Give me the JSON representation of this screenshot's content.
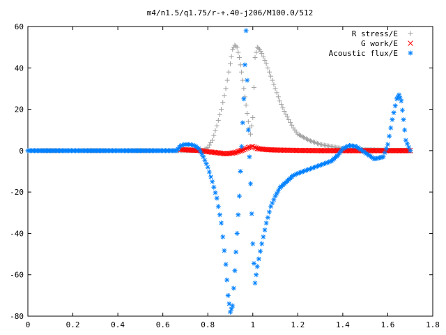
{
  "chart_data": {
    "type": "scatter",
    "title": "m4/n1.5/q1.75/r-+.40-j206/M100.0/512",
    "xlabel": "",
    "ylabel": "",
    "xlim": [
      0,
      1.8
    ],
    "ylim": [
      -80,
      60
    ],
    "xticks": [
      0,
      0.2,
      0.4,
      0.6,
      0.8,
      1,
      1.2,
      1.4,
      1.6,
      1.8
    ],
    "xtick_labels": [
      "0",
      "0.2",
      "0.4",
      "0.6",
      "0.8",
      "1",
      "1.2",
      "1.4",
      "1.6",
      "1.8"
    ],
    "yticks": [
      -80,
      -60,
      -40,
      -20,
      0,
      20,
      40,
      60
    ],
    "ytick_labels": [
      "-80",
      "-60",
      "-40",
      "-20",
      "0",
      "20",
      "40",
      "60"
    ],
    "grid": false,
    "legend_position": "top-right",
    "series": [
      {
        "name": "R stress/E",
        "marker": "plus",
        "color": "#a0a0a0",
        "points": [
          [
            0.0,
            0
          ],
          [
            0.2,
            0
          ],
          [
            0.4,
            0
          ],
          [
            0.6,
            0
          ],
          [
            0.7,
            0
          ],
          [
            0.78,
            0.2
          ],
          [
            0.8,
            1.5
          ],
          [
            0.82,
            5
          ],
          [
            0.84,
            12
          ],
          [
            0.86,
            20
          ],
          [
            0.88,
            30
          ],
          [
            0.9,
            42
          ],
          [
            0.91,
            49
          ],
          [
            0.92,
            51
          ],
          [
            0.93,
            50
          ],
          [
            0.94,
            45
          ],
          [
            0.95,
            38
          ],
          [
            0.96,
            30
          ],
          [
            0.97,
            22
          ],
          [
            0.98,
            14
          ],
          [
            0.99,
            8
          ],
          [
            1.0,
            16
          ],
          [
            1.01,
            45
          ],
          [
            1.02,
            50
          ],
          [
            1.03,
            49
          ],
          [
            1.04,
            47
          ],
          [
            1.06,
            42
          ],
          [
            1.08,
            36
          ],
          [
            1.1,
            30
          ],
          [
            1.12,
            24
          ],
          [
            1.14,
            19
          ],
          [
            1.16,
            15
          ],
          [
            1.18,
            11
          ],
          [
            1.2,
            8
          ],
          [
            1.25,
            5
          ],
          [
            1.3,
            3
          ],
          [
            1.35,
            2
          ],
          [
            1.4,
            1
          ],
          [
            1.5,
            0.5
          ],
          [
            1.6,
            0.2
          ],
          [
            1.7,
            0.1
          ]
        ]
      },
      {
        "name": "G work/E",
        "marker": "cross",
        "color": "#ff0000",
        "points": [
          [
            0.68,
            0.5
          ],
          [
            0.72,
            0.3
          ],
          [
            0.76,
            0.1
          ],
          [
            0.8,
            -0.5
          ],
          [
            0.84,
            -1
          ],
          [
            0.88,
            -1.5
          ],
          [
            0.92,
            -1
          ],
          [
            0.96,
            0.5
          ],
          [
            0.98,
            1.5
          ],
          [
            1.0,
            2
          ],
          [
            1.02,
            1
          ],
          [
            1.06,
            0.5
          ],
          [
            1.1,
            0.3
          ],
          [
            1.2,
            0.1
          ],
          [
            1.3,
            0
          ],
          [
            1.4,
            0
          ],
          [
            1.5,
            0
          ],
          [
            1.6,
            0
          ],
          [
            1.7,
            0
          ]
        ]
      },
      {
        "name": "Acoustic flux/E",
        "marker": "star",
        "color": "#0080ff",
        "points": [
          [
            0.0,
            0
          ],
          [
            0.1,
            0
          ],
          [
            0.2,
            0
          ],
          [
            0.3,
            0
          ],
          [
            0.4,
            0
          ],
          [
            0.5,
            0
          ],
          [
            0.6,
            0
          ],
          [
            0.66,
            0
          ],
          [
            0.68,
            2.5
          ],
          [
            0.7,
            3
          ],
          [
            0.72,
            3
          ],
          [
            0.74,
            2.5
          ],
          [
            0.76,
            1
          ],
          [
            0.78,
            -3
          ],
          [
            0.8,
            -8
          ],
          [
            0.82,
            -15
          ],
          [
            0.84,
            -23
          ],
          [
            0.86,
            -35
          ],
          [
            0.88,
            -55
          ],
          [
            0.89,
            -70
          ],
          [
            0.9,
            -78
          ],
          [
            0.91,
            -75
          ],
          [
            0.92,
            -58
          ],
          [
            0.93,
            -40
          ],
          [
            0.94,
            -22
          ],
          [
            0.95,
            2
          ],
          [
            0.96,
            25
          ],
          [
            0.97,
            58
          ],
          [
            0.98,
            10
          ],
          [
            0.99,
            -16
          ],
          [
            1.0,
            -45
          ],
          [
            1.01,
            -64
          ],
          [
            1.02,
            -56
          ],
          [
            1.04,
            -45
          ],
          [
            1.06,
            -35
          ],
          [
            1.08,
            -27
          ],
          [
            1.1,
            -22
          ],
          [
            1.12,
            -18
          ],
          [
            1.14,
            -16
          ],
          [
            1.16,
            -14
          ],
          [
            1.18,
            -12
          ],
          [
            1.2,
            -11
          ],
          [
            1.25,
            -9
          ],
          [
            1.3,
            -7
          ],
          [
            1.35,
            -5
          ],
          [
            1.38,
            -2
          ],
          [
            1.4,
            1
          ],
          [
            1.43,
            2.5
          ],
          [
            1.46,
            2
          ],
          [
            1.5,
            -1
          ],
          [
            1.54,
            -4
          ],
          [
            1.58,
            -3
          ],
          [
            1.6,
            3
          ],
          [
            1.62,
            15
          ],
          [
            1.64,
            25
          ],
          [
            1.65,
            27
          ],
          [
            1.66,
            24
          ],
          [
            1.67,
            15
          ],
          [
            1.68,
            5
          ],
          [
            1.7,
            0
          ]
        ]
      }
    ]
  }
}
